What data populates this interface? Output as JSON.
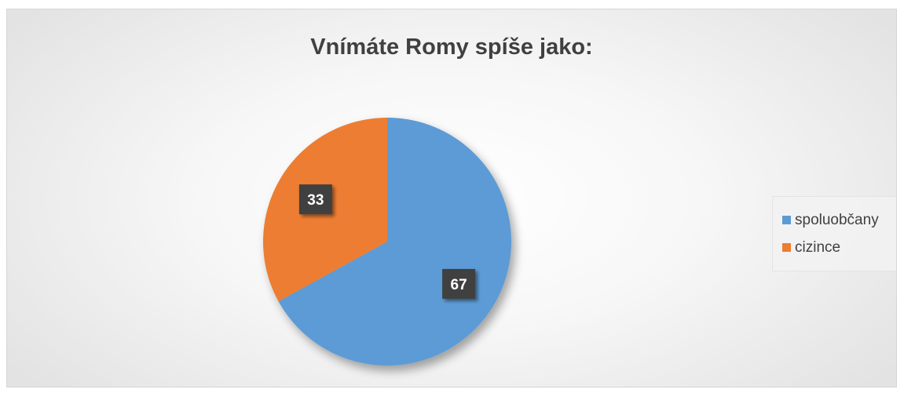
{
  "chart_data": {
    "type": "pie",
    "title": "Vnímáte Romy spíše jako:",
    "slices": [
      {
        "label": "spoluobčany",
        "value": 67,
        "color": "#5B9BD5"
      },
      {
        "label": "cizince",
        "value": 33,
        "color": "#ED7D31"
      }
    ],
    "legend": "right",
    "data_labels": true
  }
}
